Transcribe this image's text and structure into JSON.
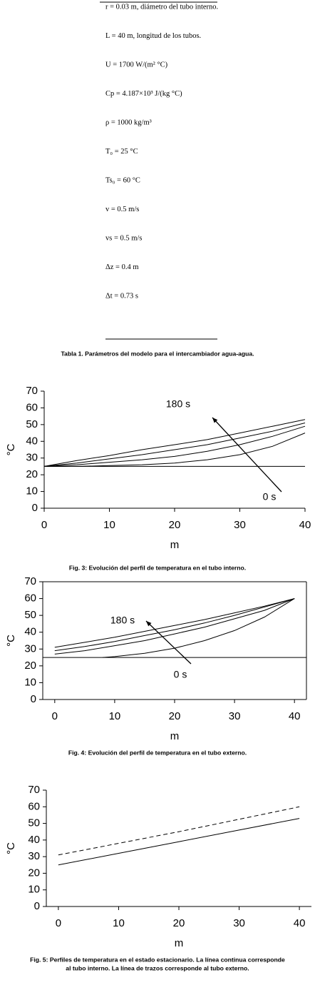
{
  "parameters": [
    "r = 0.03 m, diámetro del tubo interno.",
    "L = 40 m, longitud de los tubos.",
    "U = 1700 W/(m² °C)",
    "Cp = 4.187×10³ J/(kg °C)",
    "ρ = 1000 kg/m³",
    "T₀ = 25 °C",
    "Ts₀ = 60 °C",
    "v = 0.5 m/s",
    "vs = 0.5 m/s",
    "Δz = 0.4 m",
    "Δt = 0.73 s"
  ],
  "table_caption": "Tabla 1. Parámetros del modelo para el intercambiador agua-agua.",
  "chart_data": [
    {
      "type": "line",
      "caption": [
        "Fig. 3: Evolución del perfil de temperatura en el tubo interno."
      ],
      "y_label": "°C",
      "x_label": "m",
      "xlim": [
        0,
        40
      ],
      "xticks": [
        0,
        10,
        20,
        30,
        40
      ],
      "ylim": [
        0,
        70
      ],
      "yticks": [
        0,
        10,
        20,
        30,
        40,
        50,
        60,
        70
      ],
      "frame": false,
      "annotations": [
        "180 s",
        "0 s"
      ],
      "series": [
        {
          "color": "#000000",
          "dash": "solid",
          "x": [
            0,
            40
          ],
          "values": [
            25,
            25
          ]
        },
        {
          "color": "#000000",
          "dash": "solid",
          "x": [
            0,
            5,
            10,
            15,
            20,
            25,
            30,
            35,
            40
          ],
          "values": [
            25,
            25,
            25.5,
            26,
            27,
            29,
            32,
            37,
            45
          ]
        },
        {
          "color": "#000000",
          "dash": "solid",
          "x": [
            0,
            5,
            10,
            15,
            20,
            25,
            30,
            35,
            40
          ],
          "values": [
            25,
            26,
            27.5,
            29,
            31,
            34,
            38,
            43,
            49
          ]
        },
        {
          "color": "#000000",
          "dash": "solid",
          "x": [
            0,
            5,
            10,
            15,
            20,
            25,
            30,
            35,
            40
          ],
          "values": [
            25,
            27,
            29.5,
            32,
            35,
            38,
            42,
            46,
            51
          ]
        },
        {
          "color": "#000000",
          "dash": "solid",
          "x": [
            0,
            5,
            10,
            15,
            20,
            25,
            30,
            35,
            40
          ],
          "values": [
            25,
            28.5,
            31.5,
            35,
            38,
            41,
            45,
            49,
            53
          ]
        }
      ]
    },
    {
      "type": "line",
      "caption": [
        "Fig. 4: Evolución del perfil de temperatura en el tubo externo."
      ],
      "y_label": "°C",
      "x_label": "m",
      "xlim": [
        -2,
        42
      ],
      "xticks": [
        0,
        10,
        20,
        30,
        40
      ],
      "ylim": [
        0,
        70
      ],
      "yticks": [
        0,
        10,
        20,
        30,
        40,
        50,
        60,
        70
      ],
      "frame": true,
      "annotations": [
        "180 s",
        "0 s"
      ],
      "series": [
        {
          "color": "#000000",
          "dash": "solid",
          "x": [
            -2,
            42
          ],
          "values": [
            25,
            25
          ]
        },
        {
          "color": "#000000",
          "dash": "solid",
          "x": [
            8,
            10,
            15,
            20,
            25,
            30,
            35,
            40
          ],
          "values": [
            25,
            25.5,
            27.5,
            30.5,
            35,
            41,
            49,
            60
          ]
        },
        {
          "color": "#000000",
          "dash": "solid",
          "x": [
            0,
            5,
            10,
            15,
            20,
            25,
            30,
            35,
            40
          ],
          "values": [
            27,
            29,
            32,
            35,
            39,
            43,
            48,
            53,
            60
          ]
        },
        {
          "color": "#000000",
          "dash": "solid",
          "x": [
            0,
            5,
            10,
            15,
            20,
            25,
            30,
            35,
            40
          ],
          "values": [
            29,
            31.5,
            34.5,
            38,
            41.5,
            45.5,
            50,
            55,
            60
          ]
        },
        {
          "color": "#000000",
          "dash": "solid",
          "x": [
            0,
            5,
            10,
            15,
            20,
            25,
            30,
            35,
            40
          ],
          "values": [
            31,
            34,
            37,
            40.5,
            44,
            47.5,
            51.5,
            55.5,
            60
          ]
        }
      ]
    },
    {
      "type": "line",
      "caption": [
        "Fig. 5: Perfiles de temperatura en el estado estacionario. La línea continua corresponde",
        "al tubo interno. La línea de trazos corresponde al tubo externo."
      ],
      "y_label": "°C",
      "x_label": "m",
      "xlim": [
        -2,
        42
      ],
      "xticks": [
        0,
        10,
        20,
        30,
        40
      ],
      "ylim": [
        0,
        70
      ],
      "yticks": [
        0,
        10,
        20,
        30,
        40,
        50,
        60,
        70
      ],
      "frame": false,
      "annotations": [],
      "series": [
        {
          "color": "#000000",
          "dash": "solid",
          "x": [
            0,
            10,
            20,
            30,
            40
          ],
          "values": [
            25,
            32,
            39,
            46,
            53
          ]
        },
        {
          "color": "#000000",
          "dash": "dashed",
          "x": [
            0,
            10,
            20,
            30,
            40
          ],
          "values": [
            31,
            38,
            45,
            52.5,
            60
          ]
        }
      ]
    }
  ]
}
